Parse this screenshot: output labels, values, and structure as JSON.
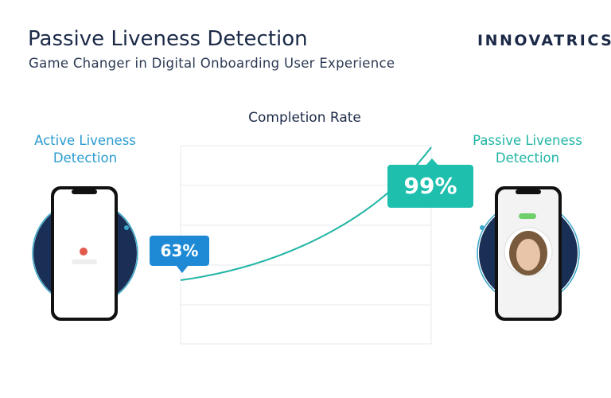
{
  "header": {
    "title": "Passive Liveness Detection",
    "subtitle": "Game Changer in Digital Onboarding User Experience",
    "logo": "INNOVATRICS"
  },
  "chart": {
    "title": "Completion Rate",
    "left_label": "Active Liveness Detection",
    "right_label": "Passive Liveness Detection",
    "left_value": "63%",
    "right_value": "99%"
  }
}
